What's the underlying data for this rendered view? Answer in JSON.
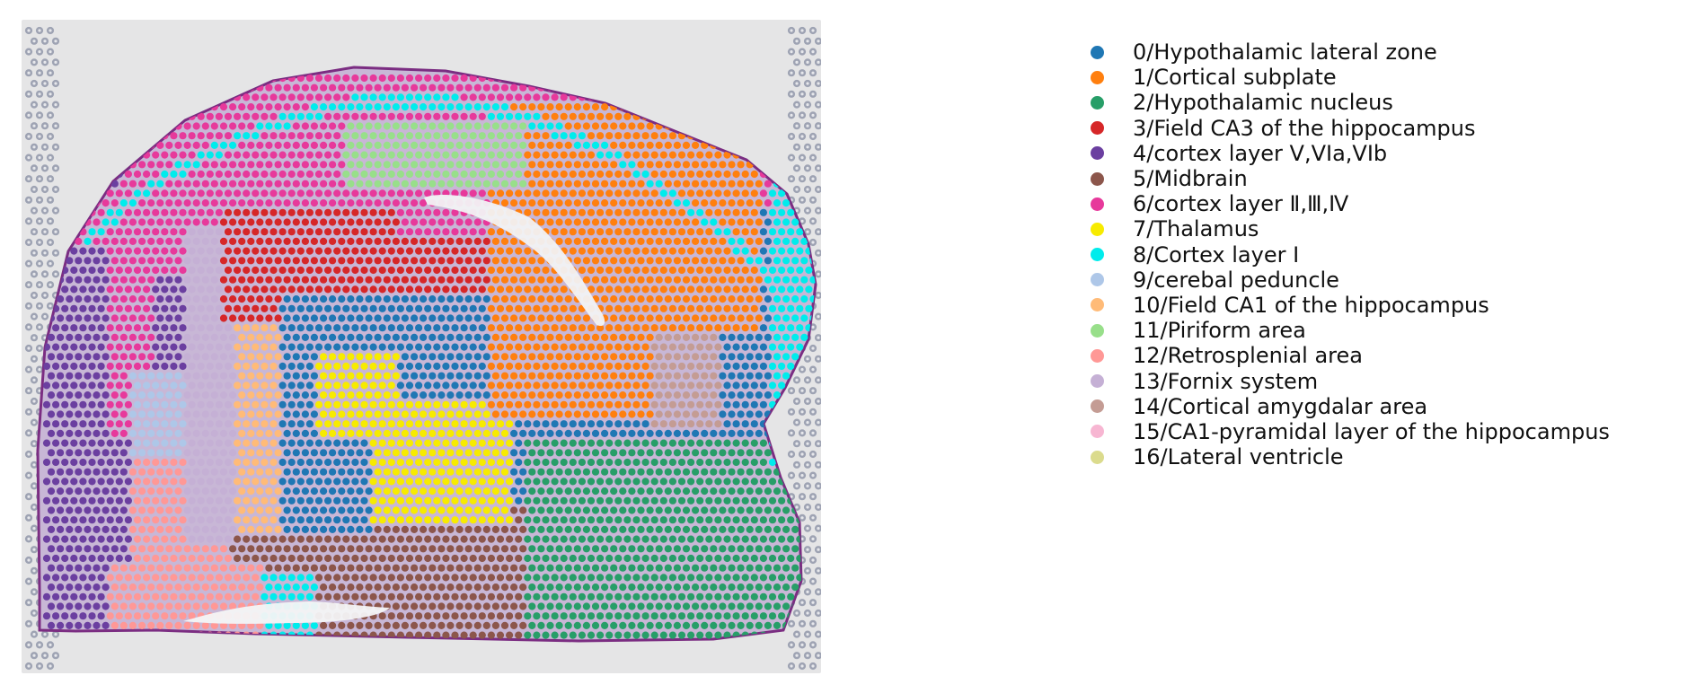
{
  "image": {
    "description_name": "spatial-transcriptomics-brain-section",
    "spot_palette": {
      "background": "#e5e5e6",
      "tissue_outline": "#7b2d82",
      "ring_spot": "#9ea3b3"
    }
  },
  "legend": {
    "items": [
      {
        "label": "0/Hypothalamic lateral zone",
        "color": "#1f77b4"
      },
      {
        "label": "1/Cortical subplate",
        "color": "#ff7f0e"
      },
      {
        "label": "2/Hypothalamic nucleus",
        "color": "#279e68"
      },
      {
        "label": "3/Field CA3 of the hippocampus",
        "color": "#d62728"
      },
      {
        "label": "4/cortex layer V,VIa,VIb",
        "color": "#6b3fa0"
      },
      {
        "label": "5/Midbrain",
        "color": "#8c564b"
      },
      {
        "label": "6/cortex layer Ⅱ,Ⅲ,Ⅳ",
        "color": "#e7399b"
      },
      {
        "label": "7/Thalamus",
        "color": "#f7eb00"
      },
      {
        "label": "8/Cortex layer I",
        "color": "#00ecec"
      },
      {
        "label": "9/cerebal peduncle",
        "color": "#aec7e8"
      },
      {
        "label": "10/Field CA1 of the hippocampus",
        "color": "#ffbb78"
      },
      {
        "label": "11/Piriform area",
        "color": "#98df8a"
      },
      {
        "label": "12/Retrosplenial area",
        "color": "#ff9896"
      },
      {
        "label": "13/Fornix system",
        "color": "#c5b0d5"
      },
      {
        "label": "14/Cortical amygdalar area",
        "color": "#c49c94"
      },
      {
        "label": "15/CA1-pyramidal layer of the hippocampus",
        "color": "#f7b6d2"
      },
      {
        "label": "16/Lateral ventricle",
        "color": "#dbdb8d"
      }
    ]
  }
}
